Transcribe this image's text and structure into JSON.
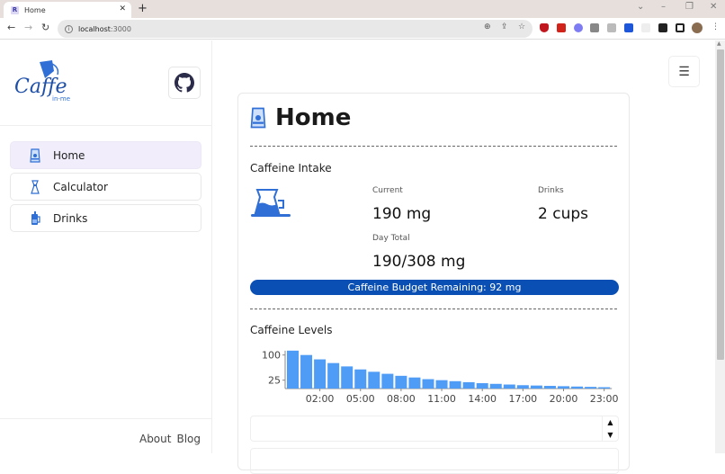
{
  "browser": {
    "tab_title": "Home",
    "tab_favicon": "R",
    "url_host": "localhost",
    "url_port": ":3000"
  },
  "sidebar": {
    "logo_text": "Caffe",
    "logo_sub": "in-me",
    "items": [
      {
        "label": "Home",
        "icon": "home-bag-icon",
        "active": true
      },
      {
        "label": "Calculator",
        "icon": "chemex-icon",
        "active": false
      },
      {
        "label": "Drinks",
        "icon": "french-press-icon",
        "active": false
      }
    ],
    "footer_links": [
      "About",
      "Blog"
    ]
  },
  "page": {
    "title": "Home",
    "intake": {
      "section_title": "Caffeine Intake",
      "current_label": "Current",
      "current_value": "190 mg",
      "drinks_label": "Drinks",
      "drinks_value": "2 cups",
      "day_total_label": "Day Total",
      "day_total_value": "190/308 mg",
      "budget_text": "Caffeine Budget Remaining: 92 mg"
    },
    "levels": {
      "section_title": "Caffeine Levels"
    }
  },
  "colors": {
    "accent": "#0a4fb3",
    "bar": "#4f9cf7",
    "active_nav": "#f1edfb"
  },
  "chart_data": {
    "type": "bar",
    "title": "Caffeine Levels",
    "xlabel": "",
    "ylabel": "",
    "categories": [
      "00:00",
      "01:00",
      "02:00",
      "03:00",
      "04:00",
      "05:00",
      "06:00",
      "07:00",
      "08:00",
      "09:00",
      "10:00",
      "11:00",
      "12:00",
      "13:00",
      "14:00",
      "15:00",
      "16:00",
      "17:00",
      "18:00",
      "19:00",
      "20:00",
      "21:00",
      "22:00",
      "23:00"
    ],
    "values": [
      113,
      100,
      87,
      76,
      66,
      57,
      50,
      44,
      38,
      33,
      28,
      25,
      22,
      19,
      16,
      14,
      12,
      10,
      9,
      8,
      7,
      6,
      5,
      4
    ],
    "x_tick_labels": [
      "02:00",
      "05:00",
      "08:00",
      "11:00",
      "14:00",
      "17:00",
      "20:00",
      "23:00"
    ],
    "y_tick_labels": [
      "25",
      "100"
    ],
    "ylim": [
      0,
      115
    ],
    "grid": false,
    "legend": false
  }
}
